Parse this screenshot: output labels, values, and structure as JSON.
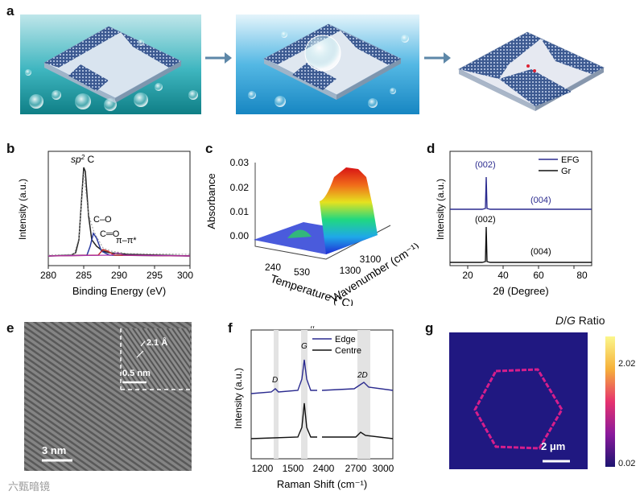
{
  "panels": {
    "a": "a",
    "b": "b",
    "c": "c",
    "d": "d",
    "e": "e",
    "f": "f",
    "g": "g"
  },
  "a": {
    "arrow_color": "#5d87a8"
  },
  "b": {
    "ylabel": "Intensity (a.u.)",
    "xlabel": "Binding Energy (eV)",
    "ticks": [
      "280",
      "285",
      "290",
      "295",
      "300"
    ],
    "peak_sp2": "sp",
    "peak_sp2_sup": "2",
    "peak_sp2_tail": " C",
    "peak_co": "C–O",
    "peak_ceo": "C═O",
    "peak_pipi": "π–π*"
  },
  "c": {
    "zlabel": "Absorbance",
    "ticks_z": [
      "0.03",
      "0.02",
      "0.01",
      "0.00"
    ],
    "xlabel": "Temperature (°C)",
    "xticks": [
      "240",
      "530"
    ],
    "ylabel": "Wavenumber (cm⁻¹)",
    "yticks": [
      "3100",
      "1300"
    ]
  },
  "d": {
    "ylabel": "Intensity (a.u.)",
    "xlabel": "2θ (Degree)",
    "ticks": [
      "20",
      "40",
      "60",
      "80"
    ],
    "legend": [
      {
        "name": "EFG",
        "color": "#2b2b8f"
      },
      {
        "name": "Gr",
        "color": "#111111"
      }
    ],
    "efg_002": "(002)",
    "efg_004": "(004)",
    "gr_002": "(002)",
    "gr_004": "(004)"
  },
  "e": {
    "inset_d": "2.1 Å",
    "inset_scale": "0.5 nm",
    "scale": "3 nm"
  },
  "f": {
    "ylabel": "Intensity (a.u.)",
    "xlabel": "Raman Shift (cm⁻¹)",
    "ticks": [
      "1200",
      "1500",
      "2400",
      "2700",
      "3000"
    ],
    "legend": [
      {
        "name": "Edge",
        "color": "#2b2b8f"
      },
      {
        "name": "Centre",
        "color": "#111111"
      }
    ],
    "peak_d": "D",
    "peak_g": "G",
    "peak_2d": "2D"
  },
  "g": {
    "title_d": "D",
    "title_sep": "/",
    "title_g": "G",
    "title_rest": " Ratio",
    "cbar_max": "2.02",
    "cbar_min": "0.02",
    "scale": "2 μm"
  },
  "watermark": "六甄暗镜"
}
